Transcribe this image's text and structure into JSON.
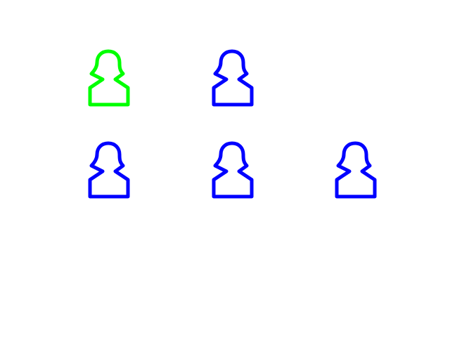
{
  "icons": [
    {
      "name": "person-icon",
      "color": "#00ff00",
      "state": "selected"
    },
    {
      "name": "person-icon",
      "color": "#0000ff",
      "state": "default"
    },
    {
      "name": "person-icon",
      "color": "#0000ff",
      "state": "default"
    },
    {
      "name": "person-icon",
      "color": "#0000ff",
      "state": "default"
    },
    {
      "name": "person-icon",
      "color": "#0000ff",
      "state": "default"
    }
  ],
  "colors": {
    "selected": "#00ff00",
    "default": "#0000ff",
    "background": "#ffffff"
  }
}
